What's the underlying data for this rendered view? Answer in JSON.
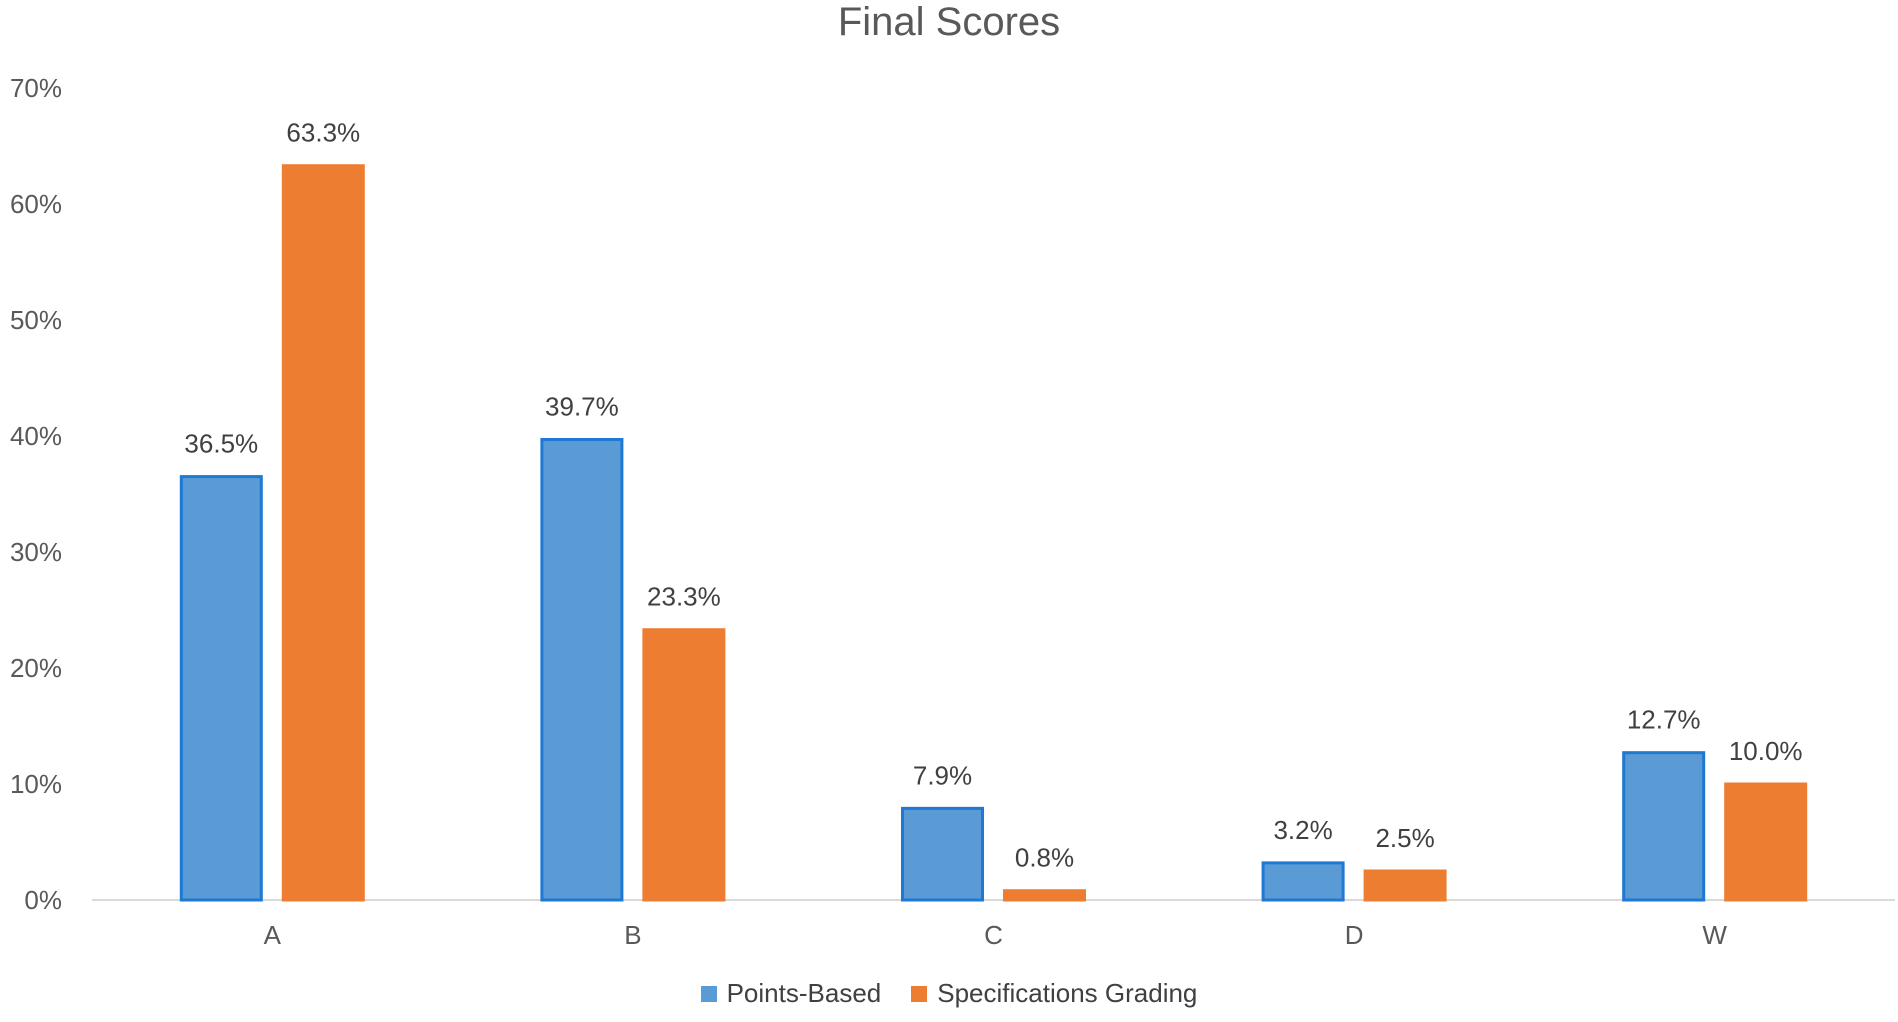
{
  "chart_data": {
    "type": "bar",
    "title": "Final Scores",
    "xlabel": "",
    "ylabel": "",
    "categories": [
      "A",
      "B",
      "C",
      "D",
      "W"
    ],
    "ylim": [
      0,
      70
    ],
    "yticks": [
      "0%",
      "10%",
      "20%",
      "30%",
      "40%",
      "50%",
      "60%",
      "70%"
    ],
    "grid": false,
    "legend_position": "bottom",
    "series": [
      {
        "name": "Points-Based",
        "color": "#5B9BD5",
        "edge_color": "#1F78D1",
        "values": [
          36.5,
          39.7,
          7.9,
          3.2,
          12.7
        ],
        "labels": [
          "36.5%",
          "39.7%",
          "7.9%",
          "3.2%",
          "12.7%"
        ]
      },
      {
        "name": "Specifications Grading",
        "color": "#ED7D31",
        "edge_color": "#ED7D31",
        "values": [
          63.3,
          23.3,
          0.8,
          2.5,
          10.0
        ],
        "labels": [
          "63.3%",
          "23.3%",
          "0.8%",
          "2.5%",
          "10.0%"
        ]
      }
    ]
  }
}
